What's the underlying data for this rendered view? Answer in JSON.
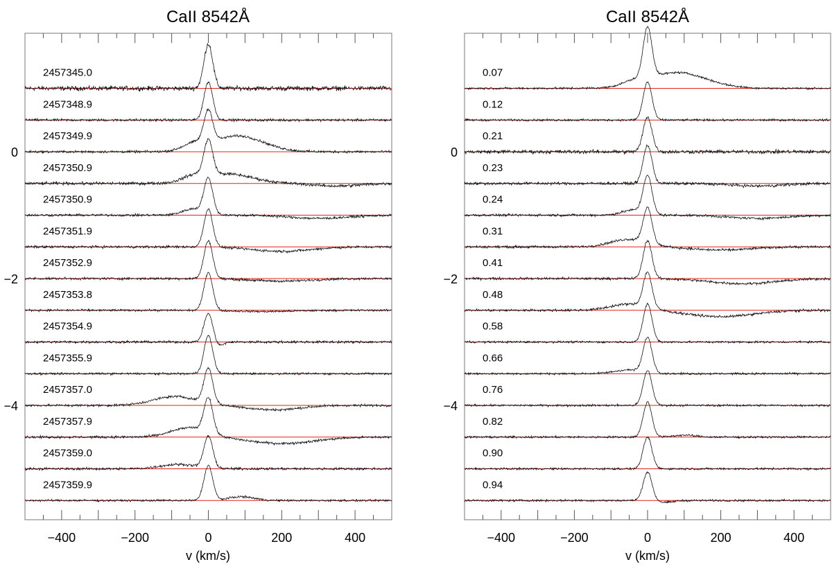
{
  "chart_data": [
    {
      "type": "line",
      "title": "CaII 8542Å",
      "xlabel": "v (km/s)",
      "ylabel": "",
      "xlim": [
        -500,
        500
      ],
      "ylim": [
        -5.8,
        1.87
      ],
      "xticks": [
        -400,
        -200,
        0,
        200,
        400
      ],
      "xtick_labels": [
        "−400",
        "−200",
        "0",
        "200",
        "400"
      ],
      "yticks": [
        0,
        -2,
        -4
      ],
      "ytick_labels": [
        "0",
        "−2",
        "−4"
      ],
      "baseline_color": "#e0201a",
      "spectrum_color": "#111111",
      "series": [
        {
          "name": "2457345.0",
          "offset": 1.0,
          "noise": 0.022,
          "components": [
            {
              "c": 0,
              "w": 12,
              "a": 0.7
            }
          ]
        },
        {
          "name": "2457348.9",
          "offset": 0.5,
          "noise": 0.012,
          "components": [
            {
              "c": 0,
              "w": 12,
              "a": 0.6
            }
          ]
        },
        {
          "name": "2457349.9",
          "offset": 0.0,
          "noise": 0.012,
          "components": [
            {
              "c": 0,
              "w": 12,
              "a": 0.5
            },
            {
              "c": 80,
              "w": 70,
              "a": 0.25
            },
            {
              "c": -40,
              "w": 30,
              "a": 0.1
            }
          ]
        },
        {
          "name": "2457350.9",
          "offset": -0.5,
          "noise": 0.015,
          "components": [
            {
              "c": 0,
              "w": 12,
              "a": 0.55
            },
            {
              "c": 50,
              "w": 70,
              "a": 0.15
            },
            {
              "c": -40,
              "w": 30,
              "a": 0.08
            },
            {
              "c": 350,
              "w": 60,
              "a": -0.04
            }
          ]
        },
        {
          "name": "2457350.9",
          "offset": -1.0,
          "noise": 0.012,
          "components": [
            {
              "c": 0,
              "w": 12,
              "a": 0.55
            },
            {
              "c": -40,
              "w": 30,
              "a": 0.1
            },
            {
              "c": 300,
              "w": 80,
              "a": -0.05
            }
          ]
        },
        {
          "name": "2457351.9",
          "offset": -1.5,
          "noise": 0.012,
          "components": [
            {
              "c": 0,
              "w": 12,
              "a": 0.6
            },
            {
              "c": 200,
              "w": 80,
              "a": -0.07
            }
          ]
        },
        {
          "name": "2457352.9",
          "offset": -2.0,
          "noise": 0.012,
          "components": [
            {
              "c": 0,
              "w": 12,
              "a": 0.6
            },
            {
              "c": 200,
              "w": 80,
              "a": -0.04
            }
          ]
        },
        {
          "name": "2457353.8",
          "offset": -2.5,
          "noise": 0.01,
          "components": [
            {
              "c": 0,
              "w": 12,
              "a": 0.6
            },
            {
              "c": 150,
              "w": 80,
              "a": -0.02
            }
          ]
        },
        {
          "name": "2457354.9",
          "offset": -3.0,
          "noise": 0.012,
          "components": [
            {
              "c": 0,
              "w": 12,
              "a": 0.45
            },
            {
              "c": 30,
              "w": 12,
              "a": -0.06
            }
          ]
        },
        {
          "name": "2457355.9",
          "offset": -3.5,
          "noise": 0.01,
          "components": [
            {
              "c": 0,
              "w": 12,
              "a": 0.6
            }
          ]
        },
        {
          "name": "2457357.0",
          "offset": -4.0,
          "noise": 0.012,
          "components": [
            {
              "c": 0,
              "w": 12,
              "a": 0.55
            },
            {
              "c": -90,
              "w": 60,
              "a": 0.14
            },
            {
              "c": 180,
              "w": 70,
              "a": -0.07
            }
          ]
        },
        {
          "name": "2457357.9",
          "offset": -4.5,
          "noise": 0.012,
          "components": [
            {
              "c": 0,
              "w": 12,
              "a": 0.55
            },
            {
              "c": -50,
              "w": 50,
              "a": 0.15
            },
            {
              "c": 200,
              "w": 90,
              "a": -0.1
            }
          ]
        },
        {
          "name": "2457359.0",
          "offset": -5.0,
          "noise": 0.012,
          "components": [
            {
              "c": 0,
              "w": 12,
              "a": 0.5
            },
            {
              "c": -80,
              "w": 50,
              "a": 0.07
            }
          ]
        },
        {
          "name": "2457359.9",
          "offset": -5.5,
          "noise": 0.01,
          "components": [
            {
              "c": 0,
              "w": 12,
              "a": 0.55
            },
            {
              "c": 90,
              "w": 35,
              "a": 0.06
            }
          ]
        }
      ]
    },
    {
      "type": "line",
      "title": "CaII 8542Å",
      "xlabel": "v (km/s)",
      "ylabel": "",
      "xlim": [
        -500,
        500
      ],
      "ylim": [
        -5.8,
        1.87
      ],
      "xticks": [
        -400,
        -200,
        0,
        200,
        400
      ],
      "xtick_labels": [
        "−400",
        "−200",
        "0",
        "200",
        "400"
      ],
      "yticks": [
        0,
        -2,
        -4
      ],
      "ytick_labels": [
        "0",
        "−2",
        "−4"
      ],
      "baseline_color": "#e0201a",
      "spectrum_color": "#111111",
      "series": [
        {
          "name": "0.07",
          "offset": 1.0,
          "noise": 0.01,
          "components": [
            {
              "c": 0,
              "w": 12,
              "a": 0.8
            },
            {
              "c": 80,
              "w": 80,
              "a": 0.25
            },
            {
              "c": -40,
              "w": 30,
              "a": 0.06
            }
          ]
        },
        {
          "name": "0.12",
          "offset": 0.5,
          "noise": 0.01,
          "components": [
            {
              "c": 0,
              "w": 12,
              "a": 0.6
            }
          ]
        },
        {
          "name": "0.21",
          "offset": 0.0,
          "noise": 0.018,
          "components": [
            {
              "c": 0,
              "w": 12,
              "a": 0.55
            }
          ]
        },
        {
          "name": "0.23",
          "offset": -0.5,
          "noise": 0.014,
          "components": [
            {
              "c": 0,
              "w": 12,
              "a": 0.6
            },
            {
              "c": 300,
              "w": 70,
              "a": -0.04
            }
          ]
        },
        {
          "name": "0.24",
          "offset": -1.0,
          "noise": 0.012,
          "components": [
            {
              "c": 0,
              "w": 12,
              "a": 0.6
            },
            {
              "c": -40,
              "w": 30,
              "a": 0.08
            },
            {
              "c": 300,
              "w": 80,
              "a": -0.05
            }
          ]
        },
        {
          "name": "0.31",
          "offset": -1.5,
          "noise": 0.012,
          "components": [
            {
              "c": 0,
              "w": 12,
              "a": 0.55
            },
            {
              "c": -50,
              "w": 50,
              "a": 0.12
            },
            {
              "c": 200,
              "w": 80,
              "a": -0.05
            }
          ]
        },
        {
          "name": "0.41",
          "offset": -2.0,
          "noise": 0.012,
          "components": [
            {
              "c": 0,
              "w": 12,
              "a": 0.6
            },
            {
              "c": 260,
              "w": 90,
              "a": -0.08
            }
          ]
        },
        {
          "name": "0.48",
          "offset": -2.5,
          "noise": 0.012,
          "components": [
            {
              "c": 0,
              "w": 12,
              "a": 0.55
            },
            {
              "c": -50,
              "w": 50,
              "a": 0.1
            },
            {
              "c": 200,
              "w": 90,
              "a": -0.1
            }
          ]
        },
        {
          "name": "0.58",
          "offset": -3.0,
          "noise": 0.01,
          "components": [
            {
              "c": 0,
              "w": 12,
              "a": 0.6
            }
          ]
        },
        {
          "name": "0.66",
          "offset": -3.5,
          "noise": 0.01,
          "components": [
            {
              "c": 0,
              "w": 12,
              "a": 0.55
            },
            {
              "c": -50,
              "w": 40,
              "a": 0.06
            }
          ]
        },
        {
          "name": "0.76",
          "offset": -4.0,
          "noise": 0.01,
          "components": [
            {
              "c": 0,
              "w": 12,
              "a": 0.55
            }
          ]
        },
        {
          "name": "0.82",
          "offset": -4.5,
          "noise": 0.01,
          "components": [
            {
              "c": 0,
              "w": 12,
              "a": 0.55
            },
            {
              "c": 100,
              "w": 30,
              "a": 0.03
            }
          ]
        },
        {
          "name": "0.90",
          "offset": -5.0,
          "noise": 0.01,
          "components": [
            {
              "c": 0,
              "w": 12,
              "a": 0.5
            }
          ]
        },
        {
          "name": "0.94",
          "offset": -5.5,
          "noise": 0.01,
          "components": [
            {
              "c": 0,
              "w": 12,
              "a": 0.45
            },
            {
              "c": 50,
              "w": 20,
              "a": -0.03
            }
          ]
        }
      ]
    }
  ]
}
